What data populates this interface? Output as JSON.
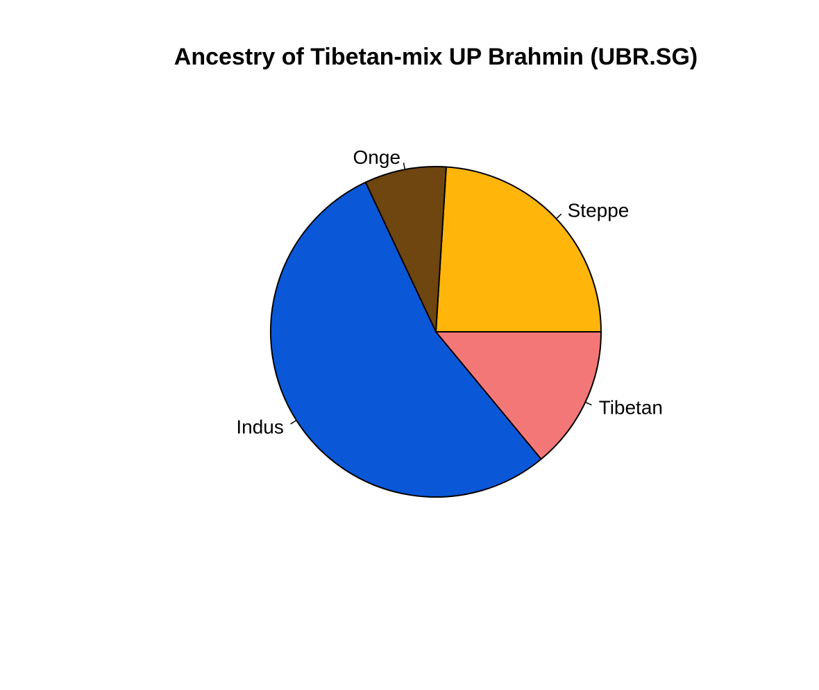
{
  "chart_data": {
    "type": "pie",
    "title": "Ancestry of Tibetan-mix UP Brahmin (UBR.SG)",
    "slices": [
      {
        "label": "Steppe",
        "value": 0.24,
        "color": "#FFB50A"
      },
      {
        "label": "Onge",
        "value": 0.08,
        "color": "#6F4510"
      },
      {
        "label": "Indus",
        "value": 0.54,
        "color": "#0A58D8"
      },
      {
        "label": "Tibetan",
        "value": 0.14,
        "color": "#F47777"
      }
    ],
    "start_angle_deg": 0,
    "direction": "counterclockwise",
    "border_color": "#000000",
    "legend": "none"
  }
}
